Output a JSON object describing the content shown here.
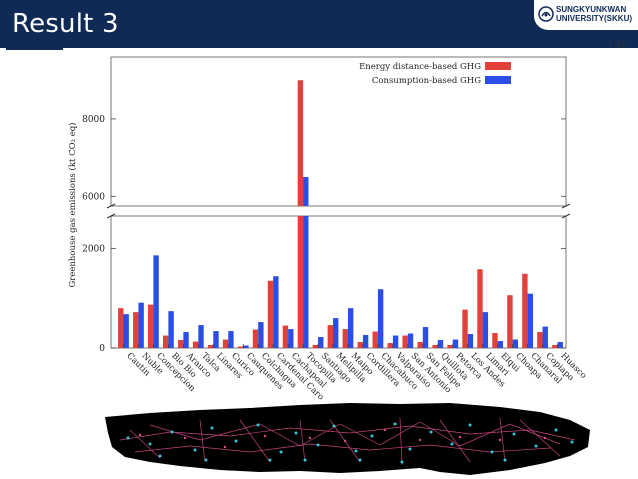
{
  "slide": {
    "title": "Result 3",
    "page_current": "44",
    "page_sep": "/",
    "page_total": "47",
    "logo_line1": "SUNGKYUNKWAN",
    "logo_line2": "UNIVERSITY(SKKU)",
    "colors": {
      "header": "#0e2a55",
      "red": "#e2403a",
      "blue": "#2a4ee6"
    }
  },
  "chart_data": {
    "type": "bar",
    "title": "",
    "xlabel": "",
    "ylabel": "Greenhouse gas emissions (kt CO₂ eq)",
    "axis_break": {
      "from": 2650,
      "to": 5750
    },
    "ylim": [
      0,
      9600
    ],
    "yticks": [
      0,
      2000,
      6000,
      8000
    ],
    "categories": [
      "Cautin",
      "Nuble",
      "Concepcion",
      "Bio Bio",
      "Arauco",
      "Talca",
      "Linares",
      "Curico",
      "Cauquenes",
      "Colchagua",
      "Cardenal Caro",
      "Cachapoal",
      "Tocopilla",
      "Santiago",
      "Melipilla",
      "Maipo",
      "Cordillera",
      "Chacabuco",
      "Valparaiso",
      "San Antonio",
      "San Felipe",
      "Quillota",
      "Petorca",
      "Los Andes",
      "Limari",
      "Elqui",
      "Choapa",
      "Chanaral",
      "Copiapo",
      "Huasco"
    ],
    "series": [
      {
        "name": "Energy distance-based GHG",
        "color": "#e2403a",
        "values": [
          800,
          720,
          870,
          250,
          160,
          130,
          60,
          170,
          30,
          370,
          1350,
          450,
          9000,
          60,
          460,
          380,
          120,
          330,
          100,
          250,
          120,
          60,
          60,
          770,
          1580,
          300,
          1060,
          1490,
          320,
          60
        ]
      },
      {
        "name": "Consumption-based GHG",
        "color": "#2a4ee6",
        "values": [
          680,
          910,
          1860,
          740,
          320,
          460,
          340,
          340,
          50,
          520,
          1440,
          380,
          6500,
          220,
          600,
          800,
          260,
          1180,
          250,
          290,
          420,
          160,
          170,
          280,
          720,
          140,
          170,
          1090,
          430,
          120
        ]
      }
    ]
  }
}
